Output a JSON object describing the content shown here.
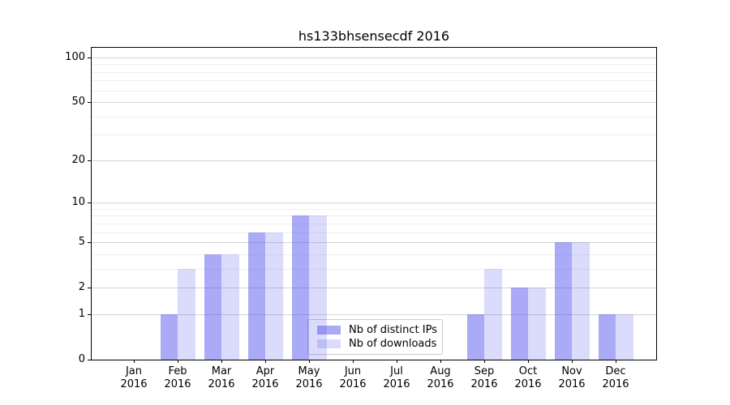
{
  "title": "hs133bhsensecdf 2016",
  "chart_data": {
    "type": "bar",
    "title": "hs133bhsensecdf 2016",
    "x_tick_labels": [
      {
        "month": "Jan",
        "year": "2016"
      },
      {
        "month": "Feb",
        "year": "2016"
      },
      {
        "month": "Mar",
        "year": "2016"
      },
      {
        "month": "Apr",
        "year": "2016"
      },
      {
        "month": "May",
        "year": "2016"
      },
      {
        "month": "Jun",
        "year": "2016"
      },
      {
        "month": "Jul",
        "year": "2016"
      },
      {
        "month": "Aug",
        "year": "2016"
      },
      {
        "month": "Sep",
        "year": "2016"
      },
      {
        "month": "Oct",
        "year": "2016"
      },
      {
        "month": "Nov",
        "year": "2016"
      },
      {
        "month": "Dec",
        "year": "2016"
      }
    ],
    "series": [
      {
        "name": "Nb of distinct IPs",
        "color": "rgba(75,75,235,0.47)",
        "color_hex": "#aaaaf6",
        "values": [
          0,
          1,
          4,
          6,
          8,
          0,
          0,
          0,
          1,
          2,
          5,
          1
        ]
      },
      {
        "name": "Nb of downloads",
        "color": "rgba(75,75,235,0.2)",
        "color_hex": "#dbdbfb",
        "values": [
          0,
          3,
          4,
          6,
          8,
          0,
          0,
          0,
          3,
          2,
          5,
          1
        ]
      }
    ],
    "xlabel": "",
    "ylabel": "",
    "yscale": "log10(1+x)",
    "ylim": [
      0,
      116
    ],
    "yticks_major": [
      0,
      1,
      2,
      5,
      10,
      20,
      50,
      100
    ],
    "yticks_minor": [
      3,
      4,
      6,
      7,
      8,
      9,
      30,
      40,
      60,
      70,
      80,
      90
    ],
    "grid": true,
    "legend_position": "lower center"
  },
  "colors": {
    "grid_major": "#d4d4d4",
    "grid_minor": "#efefef",
    "spine": "#000000",
    "legend_border": "#cccccc",
    "background": "#ffffff"
  }
}
